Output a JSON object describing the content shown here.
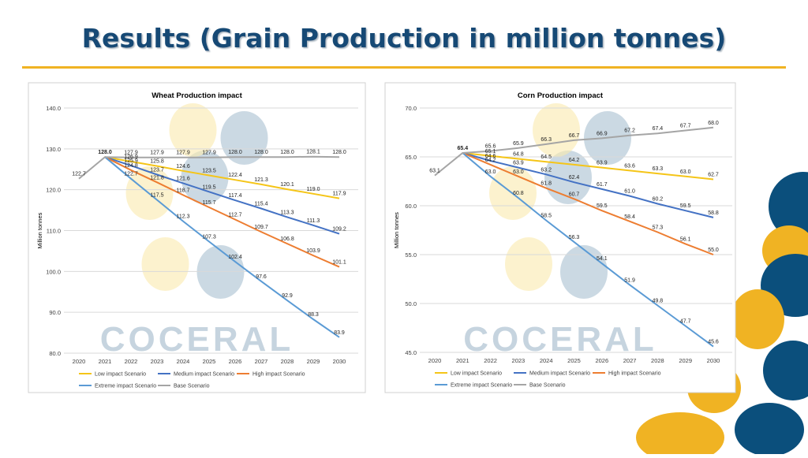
{
  "title": "Results (Grain Production in million tonnes)",
  "watermark": "COCERAL",
  "chart_data": [
    {
      "type": "line",
      "title": "Wheat Production impact",
      "ylabel": "Million tonnes",
      "categories": [
        "2020",
        "2021",
        "2022",
        "2023",
        "2024",
        "2025",
        "2026",
        "2027",
        "2028",
        "2029",
        "2030"
      ],
      "ylim": [
        80,
        140
      ],
      "yticks": [
        {
          "value": 80,
          "label": "80.0"
        },
        {
          "value": 90,
          "label": "90.0"
        },
        {
          "value": 100,
          "label": "100.0"
        },
        {
          "value": 110,
          "label": "110.0"
        },
        {
          "value": 120,
          "label": "120.0"
        },
        {
          "value": 130,
          "label": "130.0"
        },
        {
          "value": 140,
          "label": "140.0"
        }
      ],
      "grid": true,
      "legend": "bottom",
      "series": [
        {
          "name": "Low impact Scenario",
          "color": "#f5c518",
          "values": [
            null,
            128.0,
            126.9,
            125.8,
            124.6,
            123.5,
            122.4,
            121.3,
            120.1,
            119.0,
            117.9
          ],
          "value_labels": [
            null,
            null,
            "126.9",
            "125.8",
            "124.6",
            "123.5",
            "122.4",
            "121.3",
            "120.1",
            "119.0",
            "117.9"
          ]
        },
        {
          "name": "Medium impact Scenario",
          "color": "#4472c4",
          "values": [
            null,
            128.0,
            125.9,
            123.7,
            121.6,
            119.5,
            117.4,
            115.4,
            113.3,
            111.3,
            109.2
          ],
          "value_labels": [
            null,
            null,
            "125.9",
            "123.7",
            "121.6",
            "119.5",
            "117.4",
            "115.4",
            "113.3",
            "111.3",
            "109.2"
          ]
        },
        {
          "name": "High impact Scenario",
          "color": "#ed7d31",
          "values": [
            null,
            128.0,
            124.8,
            121.8,
            118.7,
            115.7,
            112.7,
            109.7,
            106.8,
            103.9,
            101.1
          ],
          "value_labels": [
            null,
            null,
            "124.8",
            "121.8",
            "118.7",
            "115.7",
            "112.7",
            "109.7",
            "106.8",
            "103.9",
            "101.1"
          ]
        },
        {
          "name": "Extreme impact Scenario",
          "color": "#5b9bd5",
          "values": [
            null,
            128.0,
            122.7,
            117.5,
            112.3,
            107.3,
            102.4,
            97.6,
            92.9,
            88.3,
            83.9
          ],
          "value_labels": [
            null,
            null,
            "122.7",
            "117.5",
            "112.3",
            "107.3",
            "102.4",
            "97.6",
            "92.9",
            "88.3",
            "83.9"
          ]
        },
        {
          "name": "Base Scenario",
          "color": "#a5a5a5",
          "values": [
            122.7,
            128.0,
            127.9,
            127.9,
            127.9,
            127.9,
            128.0,
            128.0,
            128.0,
            128.1,
            128.0
          ],
          "value_labels": [
            "122.7",
            "128.0",
            "127.9",
            "127.9",
            "127.9",
            "127.9",
            "128.0",
            "128.0",
            "128.0",
            "128.1",
            "128.0"
          ]
        }
      ]
    },
    {
      "type": "line",
      "title": "Corn Production impact",
      "ylabel": "Million tonnes",
      "categories": [
        "2020",
        "2021",
        "2022",
        "2023",
        "2024",
        "2025",
        "2026",
        "2027",
        "2028",
        "2029",
        "2030"
      ],
      "ylim": [
        45,
        70
      ],
      "yticks": [
        {
          "value": 45,
          "label": "45.0"
        },
        {
          "value": 50,
          "label": "50.0"
        },
        {
          "value": 55,
          "label": "55.0"
        },
        {
          "value": 60,
          "label": "60.0"
        },
        {
          "value": 65,
          "label": "65.0"
        },
        {
          "value": 70,
          "label": "70.0"
        }
      ],
      "grid": true,
      "legend": "bottom",
      "series": [
        {
          "name": "Low impact Scenario",
          "color": "#f5c518",
          "values": [
            null,
            65.4,
            65.1,
            64.8,
            64.5,
            64.2,
            63.9,
            63.6,
            63.3,
            63.0,
            62.7
          ],
          "value_labels": [
            null,
            null,
            "65.1",
            "64.8",
            "64.5",
            "64.2",
            "63.9",
            "63.6",
            "63.3",
            "63.0",
            "62.7"
          ]
        },
        {
          "name": "Medium impact Scenario",
          "color": "#4472c4",
          "values": [
            null,
            65.4,
            64.6,
            63.9,
            63.2,
            62.4,
            61.7,
            61.0,
            60.2,
            59.5,
            58.8
          ],
          "value_labels": [
            null,
            null,
            "64.6",
            "63.9",
            "63.2",
            "62.4",
            "61.7",
            "61.0",
            "60.2",
            "59.5",
            "58.8"
          ]
        },
        {
          "name": "High impact Scenario",
          "color": "#ed7d31",
          "values": [
            null,
            65.4,
            64.2,
            63.0,
            61.8,
            60.7,
            59.5,
            58.4,
            57.3,
            56.1,
            55.0
          ],
          "value_labels": [
            null,
            null,
            "64.2",
            "63.0",
            "61.8",
            "60.7",
            "59.5",
            "58.4",
            "57.3",
            "56.1",
            "55.0"
          ]
        },
        {
          "name": "Extreme impact Scenario",
          "color": "#5b9bd5",
          "values": [
            null,
            65.4,
            63.0,
            60.8,
            58.5,
            56.3,
            54.1,
            51.9,
            49.8,
            47.7,
            45.6
          ],
          "value_labels": [
            null,
            null,
            "63.0",
            "60.8",
            "58.5",
            "56.3",
            "54.1",
            "51.9",
            "49.8",
            "47.7",
            "45.6"
          ]
        },
        {
          "name": "Base Scenario",
          "color": "#a5a5a5",
          "values": [
            63.1,
            65.4,
            65.6,
            65.9,
            66.3,
            66.7,
            66.9,
            67.2,
            67.4,
            67.7,
            68.0
          ],
          "value_labels": [
            "63.1",
            "65.4",
            "65.6",
            "65.9",
            "66.3",
            "66.7",
            "66.9",
            "67.2",
            "67.4",
            "67.7",
            "68.0"
          ]
        }
      ]
    }
  ]
}
